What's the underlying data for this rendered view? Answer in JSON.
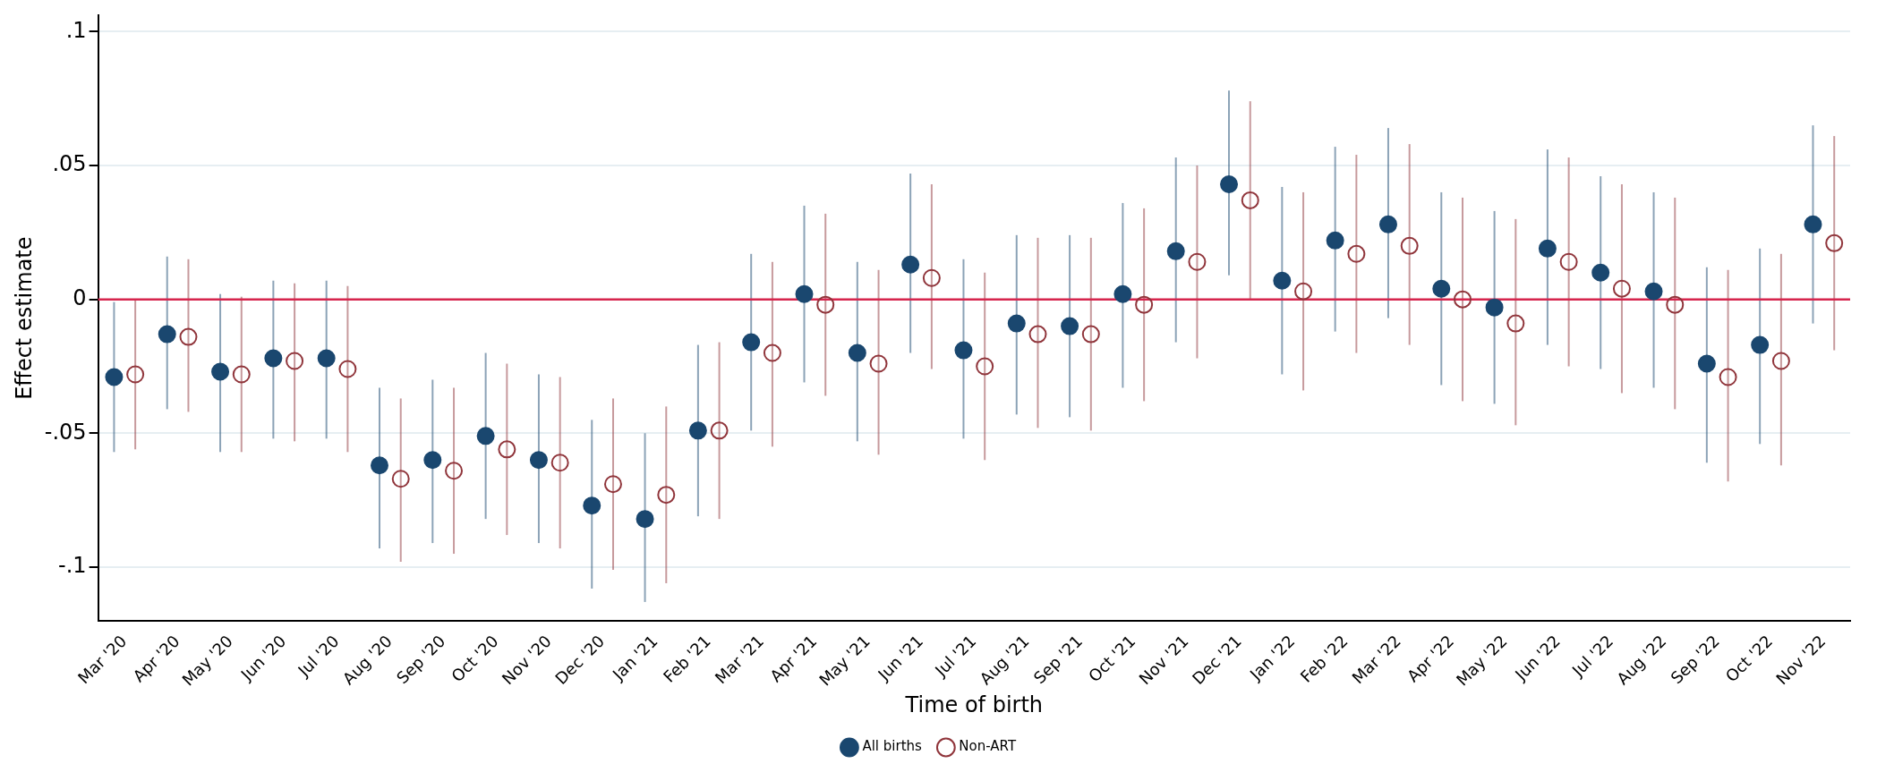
{
  "chart_data": {
    "type": "scatter",
    "xlabel": "Time of birth",
    "ylabel": "Effect estimate",
    "categories": [
      "Mar '20",
      "Apr '20",
      "May '20",
      "Jun '20",
      "Jul '20",
      "Aug '20",
      "Sep '20",
      "Oct '20",
      "Nov '20",
      "Dec '20",
      "Jan '21",
      "Feb '21",
      "Mar '21",
      "Apr '21",
      "May '21",
      "Jun '21",
      "Jul '21",
      "Aug '21",
      "Sep '21",
      "Oct '21",
      "Nov '21",
      "Dec '21",
      "Jan '22",
      "Feb '22",
      "Mar '22",
      "Apr '22",
      "May '22",
      "Jun '22",
      "Jul '22",
      "Aug '22",
      "Sep '22",
      "Oct '22",
      "Nov '22"
    ],
    "series": [
      {
        "name": "All births",
        "color": "#1a476f",
        "values": [
          -0.029,
          -0.013,
          -0.027,
          -0.022,
          -0.022,
          -0.062,
          -0.06,
          -0.051,
          -0.06,
          -0.077,
          -0.082,
          -0.049,
          -0.016,
          0.002,
          -0.02,
          0.013,
          -0.019,
          -0.009,
          -0.01,
          0.002,
          0.018,
          0.043,
          0.007,
          0.022,
          0.028,
          0.004,
          -0.003,
          0.019,
          0.01,
          0.003,
          -0.024,
          -0.017,
          0.028
        ],
        "errors": [
          [
            -0.057,
            -0.001
          ],
          [
            -0.041,
            0.016
          ],
          [
            -0.057,
            0.002
          ],
          [
            -0.052,
            0.007
          ],
          [
            -0.052,
            0.007
          ],
          [
            -0.093,
            -0.033
          ],
          [
            -0.091,
            -0.03
          ],
          [
            -0.082,
            -0.02
          ],
          [
            -0.091,
            -0.028
          ],
          [
            -0.108,
            -0.045
          ],
          [
            -0.113,
            -0.05
          ],
          [
            -0.081,
            -0.017
          ],
          [
            -0.049,
            0.017
          ],
          [
            -0.031,
            0.035
          ],
          [
            -0.053,
            0.014
          ],
          [
            -0.02,
            0.047
          ],
          [
            -0.052,
            0.015
          ],
          [
            -0.043,
            0.024
          ],
          [
            -0.044,
            0.024
          ],
          [
            -0.033,
            0.036
          ],
          [
            -0.016,
            0.053
          ],
          [
            0.009,
            0.078
          ],
          [
            -0.028,
            0.042
          ],
          [
            -0.012,
            0.057
          ],
          [
            -0.007,
            0.064
          ],
          [
            -0.032,
            0.04
          ],
          [
            -0.039,
            0.033
          ],
          [
            -0.017,
            0.056
          ],
          [
            -0.026,
            0.046
          ],
          [
            -0.033,
            0.04
          ],
          [
            -0.061,
            0.012
          ],
          [
            -0.054,
            0.019
          ],
          [
            -0.009,
            0.065
          ]
        ]
      },
      {
        "name": "Non-ART",
        "color": "#90353b",
        "values": [
          -0.028,
          -0.014,
          -0.028,
          -0.023,
          -0.026,
          -0.067,
          -0.064,
          -0.056,
          -0.061,
          -0.069,
          -0.073,
          -0.049,
          -0.02,
          -0.002,
          -0.024,
          0.008,
          -0.025,
          -0.013,
          -0.013,
          -0.002,
          0.014,
          0.037,
          0.003,
          0.017,
          0.02,
          0.0,
          -0.009,
          0.014,
          0.004,
          -0.002,
          -0.029,
          -0.023,
          0.021
        ],
        "errors": [
          [
            -0.056,
            0.0
          ],
          [
            -0.042,
            0.015
          ],
          [
            -0.057,
            0.001
          ],
          [
            -0.053,
            0.006
          ],
          [
            -0.057,
            0.005
          ],
          [
            -0.098,
            -0.037
          ],
          [
            -0.095,
            -0.033
          ],
          [
            -0.088,
            -0.024
          ],
          [
            -0.093,
            -0.029
          ],
          [
            -0.101,
            -0.037
          ],
          [
            -0.106,
            -0.04
          ],
          [
            -0.082,
            -0.016
          ],
          [
            -0.055,
            0.014
          ],
          [
            -0.036,
            0.032
          ],
          [
            -0.058,
            0.011
          ],
          [
            -0.026,
            0.043
          ],
          [
            -0.06,
            0.01
          ],
          [
            -0.048,
            0.023
          ],
          [
            -0.049,
            0.023
          ],
          [
            -0.038,
            0.034
          ],
          [
            -0.022,
            0.05
          ],
          [
            0.0,
            0.074
          ],
          [
            -0.034,
            0.04
          ],
          [
            -0.02,
            0.054
          ],
          [
            -0.017,
            0.058
          ],
          [
            -0.038,
            0.038
          ],
          [
            -0.047,
            0.03
          ],
          [
            -0.025,
            0.053
          ],
          [
            -0.035,
            0.043
          ],
          [
            -0.041,
            0.038
          ],
          [
            -0.068,
            0.011
          ],
          [
            -0.062,
            0.017
          ],
          [
            -0.019,
            0.061
          ]
        ]
      }
    ],
    "ylim": [
      -0.12,
      0.106
    ],
    "yticks": [
      {
        "value": -0.1,
        "label": "-.1"
      },
      {
        "value": -0.05,
        "label": "-.05"
      },
      {
        "value": 0,
        "label": "0"
      },
      {
        "value": 0.05,
        "label": ".05"
      },
      {
        "value": 0.1,
        "label": ".1"
      }
    ],
    "ref_lines": [
      {
        "axis": "y",
        "value": 0,
        "color": "#d6254d"
      }
    ],
    "grid": "y",
    "legend": "bottom",
    "marker": "circle"
  }
}
